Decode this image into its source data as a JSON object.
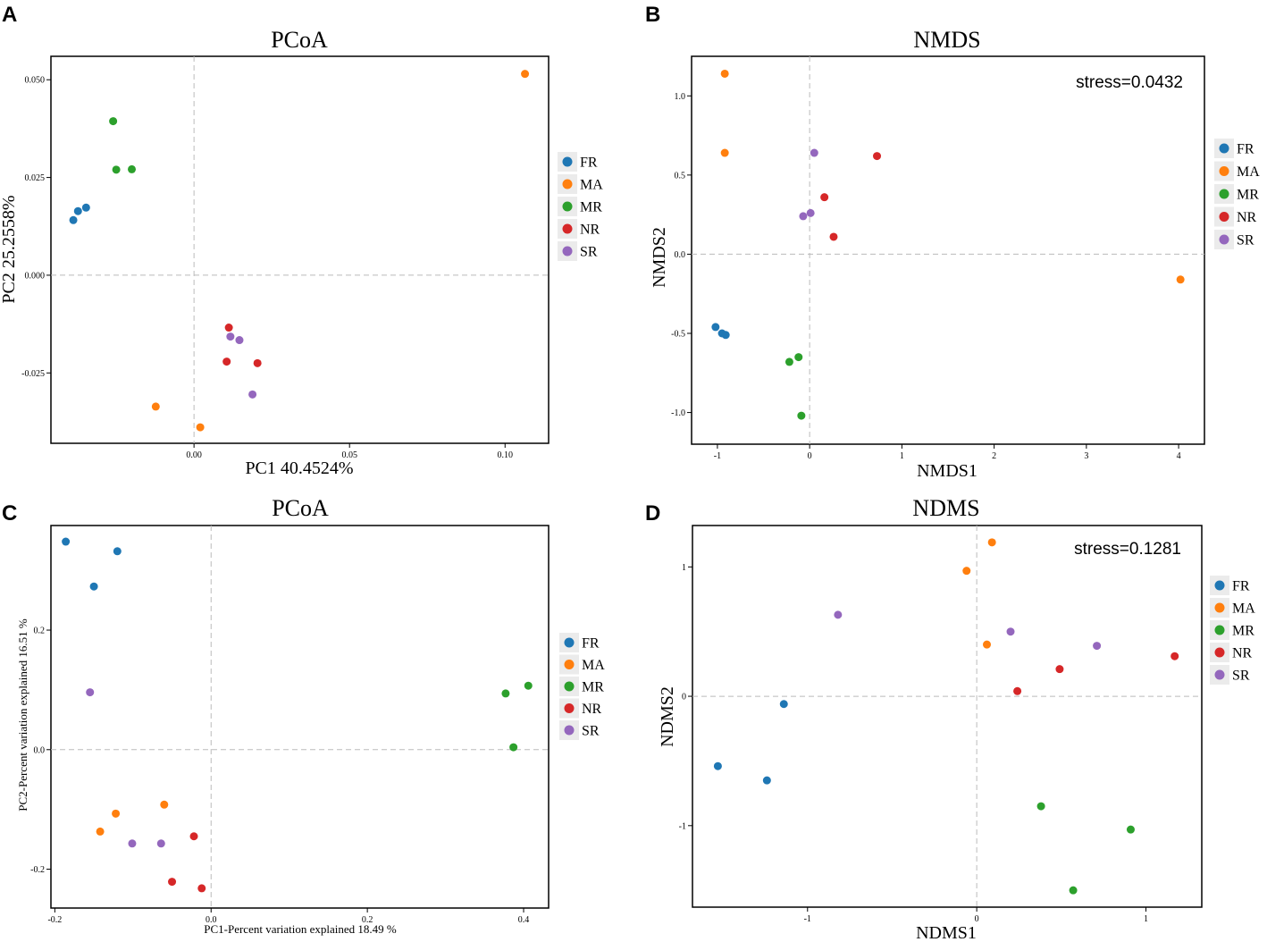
{
  "colors": {
    "FR": "#1f77b4",
    "MA": "#ff7f0e",
    "MR": "#2ca02c",
    "NR": "#d62728",
    "SR": "#9467bd"
  },
  "chart_data": [
    {
      "panel": "A",
      "type": "scatter",
      "title": "PCoA",
      "xlabel": "PC1 40.4524%",
      "ylabel": "PC2 25.2558%",
      "xlim": [
        -0.046,
        0.114
      ],
      "ylim": [
        -0.043,
        0.056
      ],
      "xticks": [
        0.0,
        0.05,
        0.1
      ],
      "xtick_labels": [
        "0.00",
        "0.05",
        "0.10"
      ],
      "yticks": [
        -0.025,
        0.0,
        0.025,
        0.05
      ],
      "ytick_labels": [
        "-0.025",
        "0.000",
        "0.025",
        "0.050"
      ],
      "refx": 0,
      "refy": 0,
      "legend": [
        "FR",
        "MA",
        "MR",
        "NR",
        "SR"
      ],
      "series": [
        {
          "name": "FR",
          "points": [
            [
              -0.0388,
              0.0141
            ],
            [
              -0.0373,
              0.0164
            ],
            [
              -0.0347,
              0.0173
            ]
          ]
        },
        {
          "name": "MA",
          "points": [
            [
              0.1064,
              0.0515
            ],
            [
              -0.0123,
              -0.0336
            ],
            [
              0.002,
              -0.0389
            ]
          ]
        },
        {
          "name": "MR",
          "points": [
            [
              -0.026,
              0.0394
            ],
            [
              -0.025,
              0.027
            ],
            [
              -0.02,
              0.0271
            ]
          ]
        },
        {
          "name": "NR",
          "points": [
            [
              0.0112,
              -0.0134
            ],
            [
              0.0105,
              -0.0221
            ],
            [
              0.0204,
              -0.0225
            ]
          ]
        },
        {
          "name": "SR",
          "points": [
            [
              0.0117,
              -0.0157
            ],
            [
              0.0146,
              -0.0166
            ],
            [
              0.0188,
              -0.0305
            ]
          ]
        }
      ]
    },
    {
      "panel": "B",
      "type": "scatter",
      "title": "NMDS",
      "xlabel": "NMDS1",
      "ylabel": "NMDS2",
      "stress": "stress=0.0432",
      "xlim": [
        -1.28,
        4.28
      ],
      "ylim": [
        -1.2,
        1.25
      ],
      "xticks": [
        -1,
        0,
        1,
        2,
        3,
        4
      ],
      "xtick_labels": [
        "-1",
        "0",
        "1",
        "2",
        "3",
        "4"
      ],
      "yticks": [
        -1.0,
        -0.5,
        0.0,
        0.5,
        1.0
      ],
      "ytick_labels": [
        "-1.0",
        "-0.5",
        "0.0",
        "0.5",
        "1.0"
      ],
      "refx": 0,
      "refy": 0,
      "legend": [
        "FR",
        "MA",
        "MR",
        "NR",
        "SR"
      ],
      "series": [
        {
          "name": "FR",
          "points": [
            [
              -1.02,
              -0.46
            ],
            [
              -0.95,
              -0.5
            ],
            [
              -0.91,
              -0.51
            ]
          ]
        },
        {
          "name": "MA",
          "points": [
            [
              -0.92,
              1.14
            ],
            [
              -0.92,
              0.64
            ],
            [
              4.02,
              -0.16
            ]
          ]
        },
        {
          "name": "MR",
          "points": [
            [
              -0.22,
              -0.68
            ],
            [
              -0.12,
              -0.65
            ],
            [
              -0.09,
              -1.02
            ]
          ]
        },
        {
          "name": "NR",
          "points": [
            [
              0.16,
              0.36
            ],
            [
              0.26,
              0.11
            ],
            [
              0.73,
              0.62
            ]
          ]
        },
        {
          "name": "SR",
          "points": [
            [
              -0.07,
              0.24
            ],
            [
              0.01,
              0.26
            ],
            [
              0.05,
              0.64
            ]
          ]
        }
      ]
    },
    {
      "panel": "C",
      "type": "scatter",
      "title": "PCoA",
      "xlabel": "PC1-Percent variation explained 18.49 %",
      "ylabel": "PC2-Percent variation explained 16.51 %",
      "xlim": [
        -0.205,
        0.432
      ],
      "ylim": [
        -0.265,
        0.375
      ],
      "xticks": [
        -0.2,
        0.0,
        0.2,
        0.4
      ],
      "xtick_labels": [
        "-0.2",
        "0.0",
        "0.2",
        "0.4"
      ],
      "yticks": [
        -0.2,
        0.0,
        0.2
      ],
      "ytick_labels": [
        "-0.2",
        "0.0",
        "0.2"
      ],
      "refx": 0,
      "refy": 0,
      "legend": [
        "FR",
        "MA",
        "MR",
        "NR",
        "SR"
      ],
      "series": [
        {
          "name": "FR",
          "points": [
            [
              -0.186,
              0.348
            ],
            [
              -0.12,
              0.332
            ],
            [
              -0.15,
              0.273
            ]
          ]
        },
        {
          "name": "MA",
          "points": [
            [
              -0.06,
              -0.092
            ],
            [
              -0.122,
              -0.107
            ],
            [
              -0.142,
              -0.137
            ]
          ]
        },
        {
          "name": "MR",
          "points": [
            [
              0.406,
              0.107
            ],
            [
              0.377,
              0.094
            ],
            [
              0.387,
              0.004
            ]
          ]
        },
        {
          "name": "NR",
          "points": [
            [
              -0.022,
              -0.145
            ],
            [
              -0.05,
              -0.221
            ],
            [
              -0.012,
              -0.232
            ]
          ]
        },
        {
          "name": "SR",
          "points": [
            [
              -0.155,
              0.096
            ],
            [
              -0.101,
              -0.157
            ],
            [
              -0.064,
              -0.157
            ]
          ]
        }
      ]
    },
    {
      "panel": "D",
      "type": "scatter",
      "title": "NDMS",
      "xlabel": "NDMS1",
      "ylabel": "NDMS2",
      "stress": "stress=0.1281",
      "xlim": [
        -1.68,
        1.33
      ],
      "ylim": [
        -1.63,
        1.32
      ],
      "xticks": [
        -1,
        0,
        1
      ],
      "xtick_labels": [
        "-1",
        "0",
        "1"
      ],
      "yticks": [
        -1,
        0,
        1
      ],
      "ytick_labels": [
        "-1",
        "0",
        "1"
      ],
      "refx": 0,
      "refy": 0,
      "legend": [
        "FR",
        "MA",
        "MR",
        "NR",
        "SR"
      ],
      "series": [
        {
          "name": "FR",
          "points": [
            [
              -1.14,
              -0.06
            ],
            [
              -1.53,
              -0.54
            ],
            [
              -1.24,
              -0.65
            ]
          ]
        },
        {
          "name": "MA",
          "points": [
            [
              0.09,
              1.19
            ],
            [
              -0.06,
              0.97
            ],
            [
              0.06,
              0.4
            ]
          ]
        },
        {
          "name": "MR",
          "points": [
            [
              0.38,
              -0.85
            ],
            [
              0.91,
              -1.03
            ],
            [
              0.57,
              -1.5
            ]
          ]
        },
        {
          "name": "NR",
          "points": [
            [
              1.17,
              0.31
            ],
            [
              0.49,
              0.21
            ],
            [
              0.24,
              0.04
            ]
          ]
        },
        {
          "name": "SR",
          "points": [
            [
              -0.82,
              0.63
            ],
            [
              0.2,
              0.5
            ],
            [
              0.71,
              0.39
            ]
          ]
        }
      ]
    }
  ]
}
